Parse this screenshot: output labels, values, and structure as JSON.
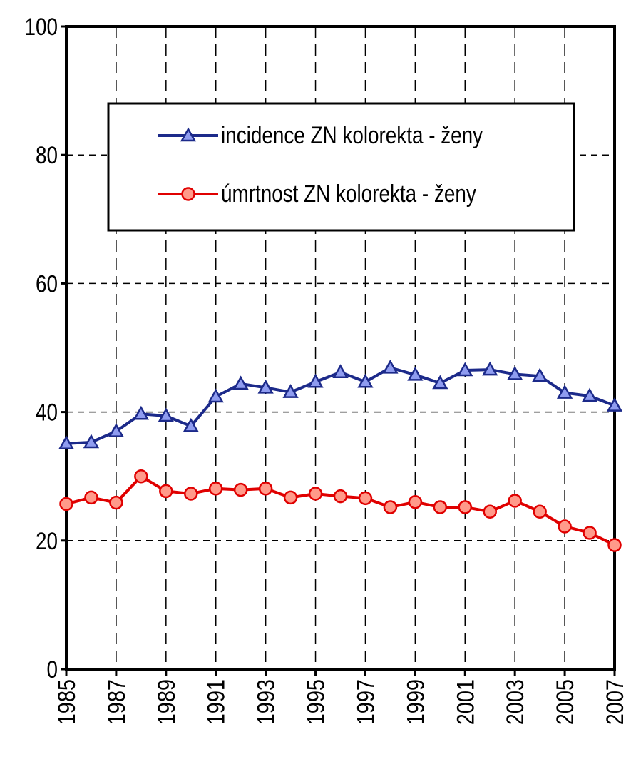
{
  "chart_data": {
    "type": "line",
    "x": [
      1985,
      1986,
      1987,
      1988,
      1989,
      1990,
      1991,
      1992,
      1993,
      1994,
      1995,
      1996,
      1997,
      1998,
      1999,
      2000,
      2001,
      2002,
      2003,
      2004,
      2005,
      2006,
      2007
    ],
    "series": [
      {
        "name": "incidence ZN kolorekta - ženy",
        "color": "#1c2a8a",
        "marker": "triangle",
        "values": [
          35.1,
          35.3,
          37.0,
          39.7,
          39.4,
          37.8,
          42.4,
          44.4,
          43.8,
          43.1,
          44.7,
          46.2,
          44.7,
          46.9,
          45.8,
          44.5,
          46.5,
          46.6,
          45.9,
          45.6,
          43.0,
          42.5,
          41.0
        ]
      },
      {
        "name": "úmrtnost ZN kolorekta - ženy",
        "color": "#e00000",
        "marker": "circle",
        "values": [
          25.7,
          26.7,
          25.9,
          30.0,
          27.7,
          27.3,
          28.1,
          27.9,
          28.1,
          26.7,
          27.3,
          26.9,
          26.6,
          25.2,
          26.0,
          25.2,
          25.2,
          24.5,
          26.2,
          24.5,
          22.2,
          21.2,
          19.3
        ]
      }
    ],
    "xlim": [
      1985,
      2007
    ],
    "xticks": [
      1985,
      1987,
      1989,
      1991,
      1993,
      1995,
      1997,
      1999,
      2001,
      2003,
      2005,
      2007
    ],
    "ylim": [
      0,
      100
    ],
    "yticks": [
      0,
      20,
      40,
      60,
      80,
      100
    ],
    "grid": true,
    "legend": "top"
  }
}
